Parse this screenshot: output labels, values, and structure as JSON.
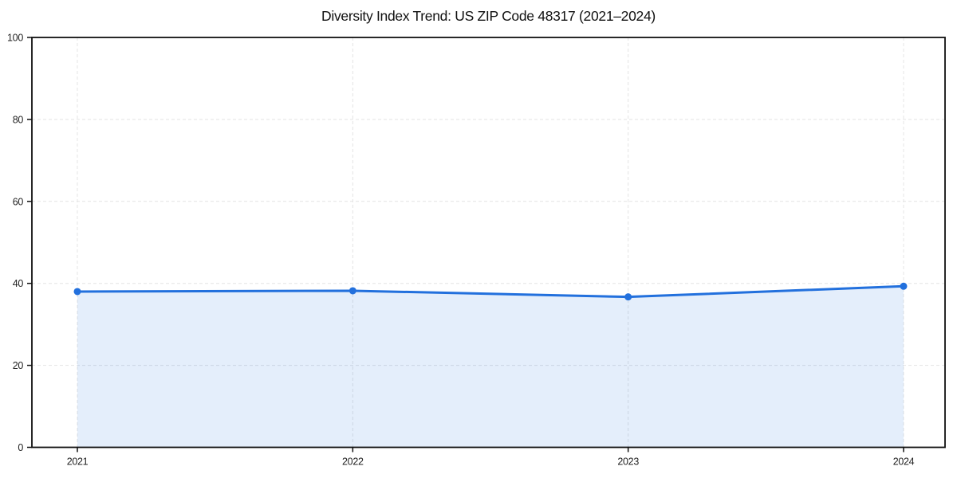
{
  "figure": {
    "background": "#ffffff"
  },
  "chart_data": {
    "type": "area",
    "title": "Diversity Index Trend: US ZIP Code 48317 (2021–2024)",
    "categories": [
      "2021",
      "2022",
      "2023",
      "2024"
    ],
    "values": [
      38.0,
      38.2,
      36.7,
      39.3
    ],
    "xlabel": "",
    "ylabel": "",
    "ylim": [
      0,
      100
    ],
    "yticks": [
      0,
      20,
      40,
      60,
      80,
      100
    ],
    "grid": true,
    "grid_style": "dashed",
    "legend": "none",
    "line_color": "#2270dd",
    "fill_opacity": 0.12,
    "grid_color": "#e4e4e4",
    "axis_color": "#111111",
    "tick_label_color": "#222222"
  }
}
